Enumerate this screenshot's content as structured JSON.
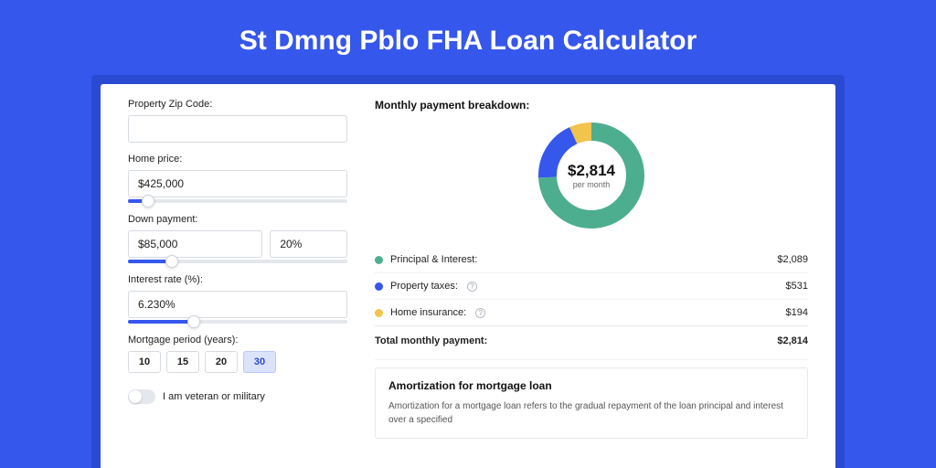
{
  "title": "St Dmng Pblo FHA Loan Calculator",
  "colors": {
    "page_bg": "#3657ec",
    "card_wrap_bg": "#2a4ad4",
    "principal": "#4cae8f",
    "taxes": "#3657ec",
    "insurance": "#f2c44c"
  },
  "form": {
    "zip": {
      "label": "Property Zip Code:",
      "value": ""
    },
    "home_price": {
      "label": "Home price:",
      "value": "$425,000",
      "slider_pct": 9
    },
    "down_payment": {
      "label": "Down payment:",
      "value": "$85,000",
      "pct": "20%",
      "slider_pct": 20
    },
    "interest": {
      "label": "Interest rate (%):",
      "value": "6.230%",
      "slider_pct": 30
    },
    "period": {
      "label": "Mortgage period (years):",
      "options": [
        "10",
        "15",
        "20",
        "30"
      ],
      "selected": "30"
    },
    "veteran": {
      "label": "I am veteran or military",
      "on": false
    }
  },
  "breakdown": {
    "title": "Monthly payment breakdown:",
    "center_amount": "$2,814",
    "center_sub": "per month",
    "items": [
      {
        "label": "Principal & Interest:",
        "value": "$2,089",
        "color": "#4cae8f",
        "has_info": false,
        "fraction": 0.742
      },
      {
        "label": "Property taxes:",
        "value": "$531",
        "color": "#3657ec",
        "has_info": true,
        "fraction": 0.189
      },
      {
        "label": "Home insurance:",
        "value": "$194",
        "color": "#f2c44c",
        "has_info": true,
        "fraction": 0.069
      }
    ],
    "total_label": "Total monthly payment:",
    "total_value": "$2,814"
  },
  "amort": {
    "title": "Amortization for mortgage loan",
    "text": "Amortization for a mortgage loan refers to the gradual repayment of the loan principal and interest over a specified"
  },
  "donut": {
    "radius": 48,
    "stroke": 20
  }
}
